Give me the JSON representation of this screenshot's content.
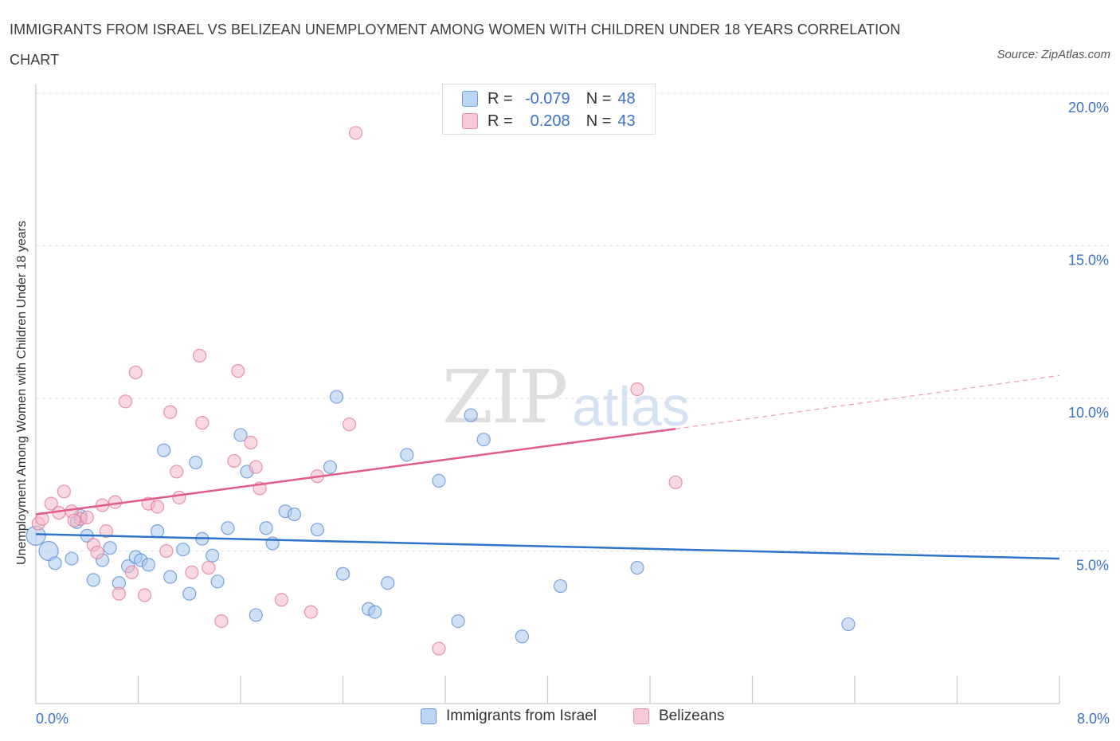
{
  "title": "IMMIGRANTS FROM ISRAEL VS BELIZEAN UNEMPLOYMENT AMONG WOMEN WITH CHILDREN UNDER 18 YEARS CORRELATION CHART",
  "source": "Source: ZipAtlas.com",
  "watermark": {
    "zip": "ZIP",
    "atlas": "atlas"
  },
  "legend": {
    "rows": [
      {
        "r_label": "R =",
        "r_value": "-0.079",
        "n_label": "N =",
        "n_value": "48"
      },
      {
        "r_label": "R =",
        "r_value": "0.208",
        "n_label": "N =",
        "n_value": "43"
      }
    ]
  },
  "colors": {
    "israel_fill": "#a9c8ef",
    "israel_stroke": "#5b8fd6",
    "israel_line": "#2f73c9",
    "belize_fill": "#f5b8cb",
    "belize_stroke": "#e27a9b",
    "belize_line": "#e05a8a",
    "tick_text": "#3a72c8",
    "grid": "#e0e0e0"
  },
  "chart_data": {
    "type": "scatter",
    "title": "IMMIGRANTS FROM ISRAEL VS BELIZEAN UNEMPLOYMENT AMONG WOMEN WITH CHILDREN UNDER 18 YEARS CORRELATION CHART",
    "xlabel": "",
    "ylabel": "Unemployment Among Women with Children Under 18 years",
    "xlim": [
      0,
      8
    ],
    "ylim": [
      0,
      20
    ],
    "x_tick_labels": [
      "0.0%",
      "8.0%"
    ],
    "y_ticks": [
      5,
      10,
      15,
      20
    ],
    "y_tick_labels": [
      "5.0%",
      "10.0%",
      "15.0%",
      "20.0%"
    ],
    "grid": true,
    "legend_position": "bottom",
    "series": [
      {
        "name": "Immigrants from Israel",
        "r": -0.079,
        "n": 48,
        "trend": {
          "x": [
            0.0,
            8.0
          ],
          "y": [
            5.55,
            4.75
          ]
        },
        "points": [
          [
            0.0,
            5.5
          ],
          [
            0.1,
            5.0
          ],
          [
            0.15,
            4.6
          ],
          [
            0.28,
            4.75
          ],
          [
            0.32,
            5.95
          ],
          [
            0.35,
            6.15
          ],
          [
            0.4,
            5.5
          ],
          [
            0.45,
            4.05
          ],
          [
            0.52,
            4.7
          ],
          [
            0.58,
            5.1
          ],
          [
            0.65,
            3.95
          ],
          [
            0.72,
            4.5
          ],
          [
            0.78,
            4.8
          ],
          [
            0.82,
            4.7
          ],
          [
            0.88,
            4.55
          ],
          [
            0.95,
            5.65
          ],
          [
            1.0,
            8.3
          ],
          [
            1.05,
            4.15
          ],
          [
            1.15,
            5.05
          ],
          [
            1.2,
            3.6
          ],
          [
            1.25,
            7.9
          ],
          [
            1.3,
            5.4
          ],
          [
            1.38,
            4.85
          ],
          [
            1.42,
            4.0
          ],
          [
            1.5,
            5.75
          ],
          [
            1.6,
            8.8
          ],
          [
            1.65,
            7.6
          ],
          [
            1.72,
            2.9
          ],
          [
            1.8,
            5.75
          ],
          [
            1.85,
            5.25
          ],
          [
            1.95,
            6.3
          ],
          [
            2.02,
            6.2
          ],
          [
            2.2,
            5.7
          ],
          [
            2.3,
            7.75
          ],
          [
            2.35,
            10.05
          ],
          [
            2.4,
            4.25
          ],
          [
            2.6,
            3.1
          ],
          [
            2.65,
            3.0
          ],
          [
            2.75,
            3.95
          ],
          [
            2.9,
            8.15
          ],
          [
            3.15,
            7.3
          ],
          [
            3.3,
            2.7
          ],
          [
            3.4,
            9.45
          ],
          [
            3.5,
            8.65
          ],
          [
            3.8,
            2.2
          ],
          [
            4.1,
            3.85
          ],
          [
            4.7,
            4.45
          ],
          [
            6.35,
            2.6
          ]
        ]
      },
      {
        "name": "Belizeans",
        "r": 0.208,
        "n": 43,
        "trend": {
          "x": [
            0.0,
            5.0
          ],
          "y": [
            6.2,
            9.0
          ]
        },
        "trend_dashed": {
          "x": [
            5.0,
            8.0
          ],
          "y": [
            9.0,
            10.75
          ]
        },
        "points": [
          [
            0.02,
            5.9
          ],
          [
            0.05,
            6.05
          ],
          [
            0.12,
            6.55
          ],
          [
            0.18,
            6.25
          ],
          [
            0.22,
            6.95
          ],
          [
            0.28,
            6.3
          ],
          [
            0.35,
            6.05
          ],
          [
            0.4,
            6.1
          ],
          [
            0.45,
            5.2
          ],
          [
            0.48,
            4.95
          ],
          [
            0.52,
            6.5
          ],
          [
            0.55,
            5.65
          ],
          [
            0.62,
            6.6
          ],
          [
            0.65,
            3.6
          ],
          [
            0.7,
            9.9
          ],
          [
            0.75,
            4.3
          ],
          [
            0.78,
            10.85
          ],
          [
            0.85,
            3.55
          ],
          [
            0.88,
            6.55
          ],
          [
            0.95,
            6.45
          ],
          [
            1.02,
            5.0
          ],
          [
            1.05,
            9.55
          ],
          [
            1.1,
            7.6
          ],
          [
            1.12,
            6.75
          ],
          [
            1.22,
            4.3
          ],
          [
            1.28,
            11.4
          ],
          [
            1.3,
            9.2
          ],
          [
            1.35,
            4.45
          ],
          [
            1.45,
            2.7
          ],
          [
            1.55,
            7.95
          ],
          [
            1.58,
            10.9
          ],
          [
            1.68,
            8.55
          ],
          [
            1.72,
            7.75
          ],
          [
            1.75,
            7.05
          ],
          [
            1.92,
            3.4
          ],
          [
            2.15,
            3.0
          ],
          [
            2.2,
            7.45
          ],
          [
            2.45,
            9.15
          ],
          [
            2.5,
            18.7
          ],
          [
            3.15,
            1.8
          ],
          [
            4.7,
            10.3
          ],
          [
            5.0,
            7.25
          ],
          [
            0.3,
            6.0
          ]
        ]
      }
    ]
  },
  "bottom_legend": [
    "Immigrants from Israel",
    "Belizeans"
  ]
}
